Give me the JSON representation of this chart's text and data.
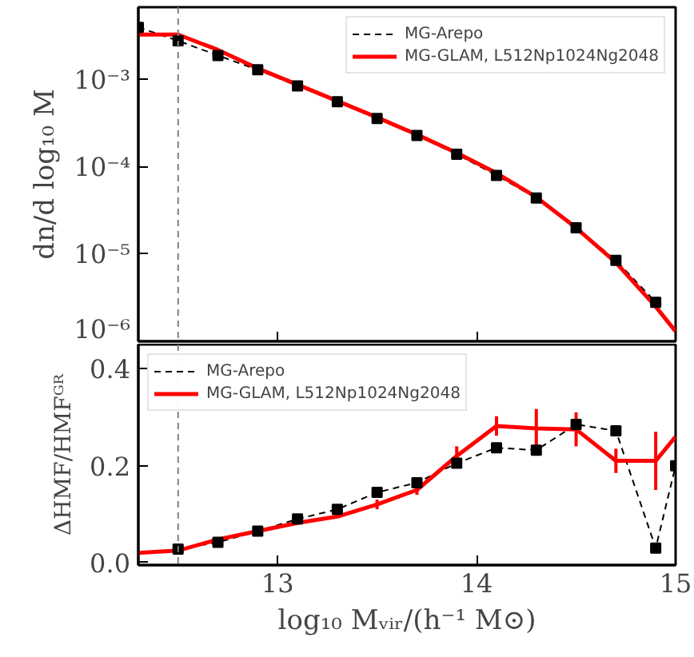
{
  "chart_data": [
    {
      "type": "line",
      "ylabel": "dn/d log₁₀ M",
      "log": "y",
      "xlim": [
        12.3,
        15.0
      ],
      "ylim": [
        1e-06,
        0.0068
      ],
      "xticks": [
        13,
        14,
        15
      ],
      "yticks": [
        {
          "value": 1e-06,
          "label": "10⁻⁶"
        },
        {
          "value": 1e-05,
          "label": "10⁻⁵"
        },
        {
          "value": 0.0001,
          "label": "10⁻⁴"
        },
        {
          "value": 0.001,
          "label": "10⁻³"
        }
      ],
      "tick_labels": "y",
      "legend": "top right",
      "grid": false,
      "ref_lines": [
        {
          "axis": "x",
          "value": 12.5,
          "color": "#808080",
          "line_style": "dashed"
        }
      ],
      "series": [
        {
          "name": "MG-Arepo",
          "color": "#000000",
          "marker": "square",
          "line_style": "dashed",
          "x": [
            12.3,
            12.5,
            12.7,
            12.9,
            13.1,
            13.3,
            13.5,
            13.7,
            13.9,
            14.1,
            14.3,
            14.5,
            14.7,
            14.9
          ],
          "values": [
            0.004,
            0.0028,
            0.0019,
            0.0013,
            0.00085,
            0.00056,
            0.00036,
            0.00023,
            0.00014,
            8e-05,
            4.4e-05,
            2e-05,
            8.5e-06,
            2.8e-06
          ]
        },
        {
          "name": "MG-GLAM, L512Np1024Ng2048",
          "color": "#ff0000",
          "marker": "none",
          "line_style": "solid",
          "x": [
            12.3,
            12.5,
            12.7,
            12.9,
            13.1,
            13.3,
            13.5,
            13.7,
            13.9,
            14.1,
            14.3,
            14.5,
            14.7,
            14.9,
            15.0
          ],
          "values": [
            0.0033,
            0.0033,
            0.0022,
            0.00135,
            0.00088,
            0.00057,
            0.00037,
            0.000235,
            0.000145,
            8.5e-05,
            4.5e-05,
            2e-05,
            8e-06,
            2.5e-06,
            1.3e-06
          ]
        }
      ]
    },
    {
      "type": "line",
      "xlabel": "log₁₀ Mᵥᵢᵣ/(h⁻¹ M⊙)",
      "ylabel": "ΔHMF/HMFᴳᴿ",
      "xlim": [
        12.3,
        15.0
      ],
      "ylim": [
        -0.005,
        0.45
      ],
      "xticks": [
        13,
        14,
        15
      ],
      "yticks": [
        {
          "value": 0,
          "label": "0.0"
        },
        0.2,
        0.4
      ],
      "legend": "top left",
      "grid": false,
      "ref_lines": [
        {
          "axis": "x",
          "value": 12.5,
          "color": "#808080",
          "line_style": "dashed"
        }
      ],
      "series": [
        {
          "name": "MG-Arepo",
          "color": "#000000",
          "marker": "square",
          "line_style": "dashed",
          "x": [
            12.5,
            12.7,
            12.9,
            13.1,
            13.3,
            13.5,
            13.7,
            13.9,
            14.1,
            14.3,
            14.5,
            14.7,
            14.9,
            15.0
          ],
          "values": [
            0.028,
            0.042,
            0.065,
            0.09,
            0.11,
            0.145,
            0.165,
            0.205,
            0.237,
            0.232,
            0.285,
            0.272,
            0.03,
            0.2
          ]
        },
        {
          "name": "MG-GLAM, L512Np1024Ng2048",
          "color": "#ff0000",
          "marker": "none",
          "line_style": "solid",
          "x": [
            12.3,
            12.5,
            12.7,
            12.9,
            13.1,
            13.3,
            13.5,
            13.7,
            13.9,
            14.1,
            14.3,
            14.5,
            14.7,
            14.9,
            15.0
          ],
          "values": [
            0.02,
            0.025,
            0.048,
            0.065,
            0.082,
            0.095,
            0.12,
            0.15,
            0.22,
            0.282,
            0.277,
            0.275,
            0.21,
            0.21,
            0.26
          ],
          "errors": [
            null,
            null,
            null,
            null,
            null,
            null,
            0.01,
            0.01,
            0.02,
            0.02,
            0.04,
            0.035,
            0.025,
            0.06,
            null
          ]
        }
      ]
    }
  ]
}
